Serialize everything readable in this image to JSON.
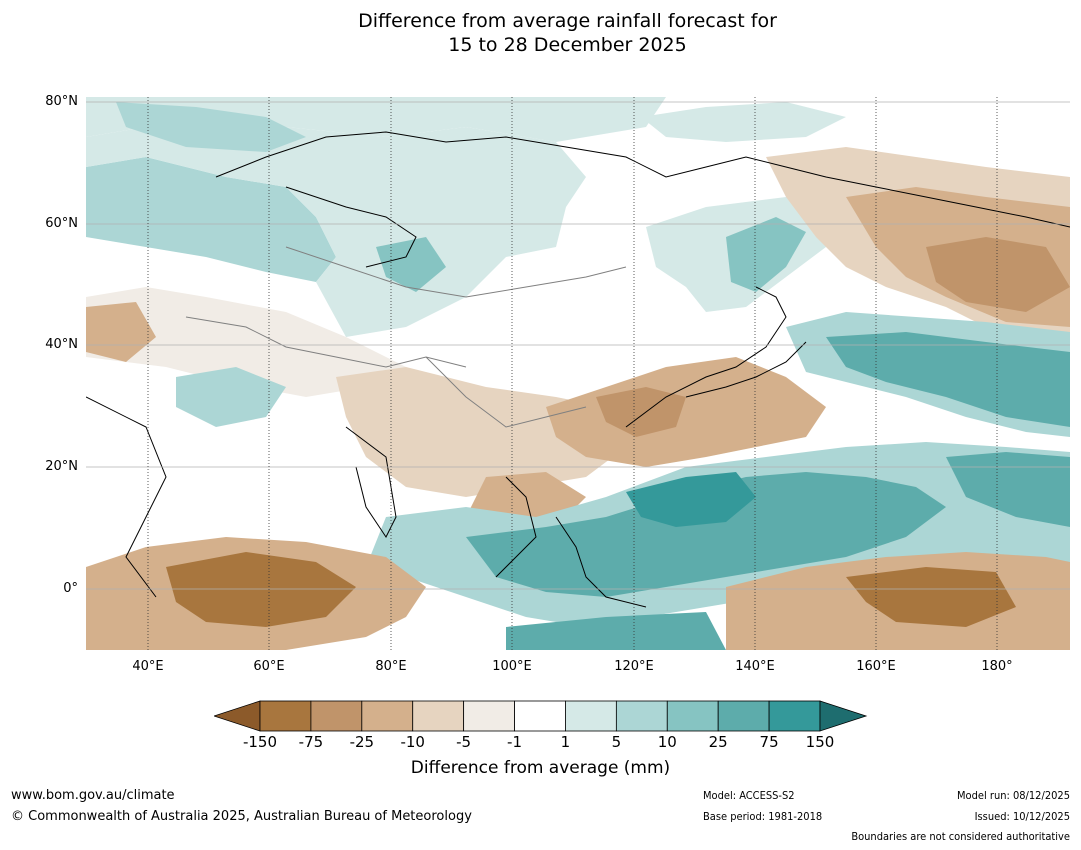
{
  "title_line1": "Difference from average rainfall forecast for",
  "title_line2": "15 to 28 December 2025",
  "lat_labels": [
    "80°N",
    "60°N",
    "40°N",
    "20°N",
    "0°"
  ],
  "lon_labels": [
    "40°E",
    "60°E",
    "80°E",
    "100°E",
    "120°E",
    "140°E",
    "160°E",
    "180°"
  ],
  "colorbar": {
    "tick_labels": [
      "-150",
      "-75",
      "-25",
      "-10",
      "-5",
      "-1",
      "1",
      "5",
      "10",
      "25",
      "75",
      "150"
    ],
    "colors": [
      "#8c5a2a",
      "#a8763e",
      "#c0946a",
      "#d4b08c",
      "#e6d4c0",
      "#f1ece6",
      "#ffffff",
      "#d5e9e7",
      "#acd6d5",
      "#86c4c2",
      "#5dacab",
      "#34999a",
      "#1e6d6f"
    ],
    "label": "Difference from average (mm)"
  },
  "footer": {
    "website": "www.bom.gov.au/climate",
    "copyright": "© Commonwealth of Australia 2025, Australian Bureau of Meteorology",
    "model": "Model: ACCESS-S2",
    "base_period": "Base period: 1981-2018",
    "model_run": "Model run: 08/12/2025",
    "issued": "Issued: 10/12/2025",
    "disclaimer": "Boundaries are not considered authoritative"
  }
}
